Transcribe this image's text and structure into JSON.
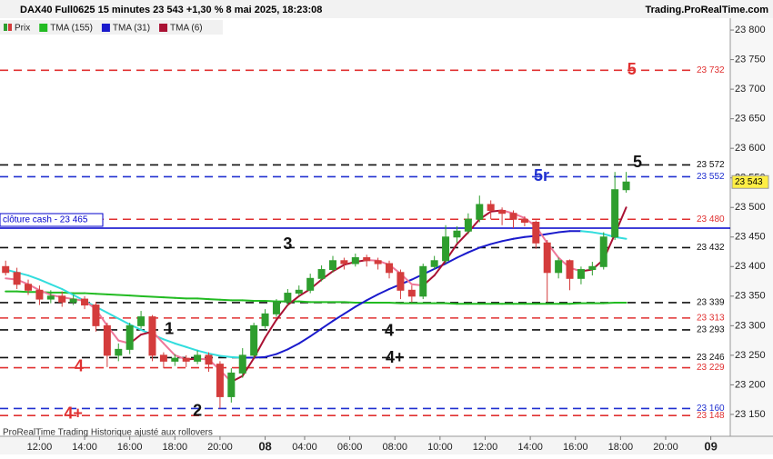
{
  "chart_data": {
    "type": "candlestick",
    "title": "DAX40 Full0625 15 minutes 23 543 +1,30 % 8 mai 2025, 18:23:08",
    "source": "Trading.ProRealTime.com",
    "footer": "ProRealTime Trading  Historique ajusté aux rollovers",
    "price_name": "Prix",
    "up_color": "#2e9e2e",
    "down_color": "#d43c3c",
    "x": [
      1,
      3,
      5,
      7,
      9,
      11,
      13,
      15,
      17,
      19,
      21,
      23,
      25,
      27,
      29,
      31,
      33,
      35,
      37,
      39,
      41,
      43,
      45,
      47,
      49,
      51,
      53,
      55,
      57,
      59,
      61,
      63,
      65,
      67,
      69,
      71,
      73,
      75,
      77,
      79,
      81,
      83,
      85,
      87,
      89,
      91,
      93,
      95,
      97,
      99,
      101,
      103,
      105,
      107,
      109,
      111
    ],
    "open": [
      23400,
      23390,
      23370,
      23360,
      23345,
      23350,
      23340,
      23345,
      23335,
      23300,
      23250,
      23260,
      23300,
      23315,
      23250,
      23240,
      23245,
      23240,
      23250,
      23235,
      23180,
      23220,
      23250,
      23300,
      23320,
      23340,
      23355,
      23360,
      23380,
      23395,
      23410,
      23405,
      23415,
      23410,
      23405,
      23390,
      23360,
      23350,
      23400,
      23410,
      23450,
      23460,
      23480,
      23505,
      23495,
      23490,
      23480,
      23475,
      23440,
      23390,
      23410,
      23380,
      23395,
      23400,
      23450,
      23530
    ],
    "high": [
      23410,
      23398,
      23378,
      23368,
      23360,
      23358,
      23352,
      23350,
      23340,
      23305,
      23270,
      23305,
      23325,
      23318,
      23255,
      23252,
      23250,
      23258,
      23255,
      23240,
      23228,
      23262,
      23305,
      23328,
      23345,
      23362,
      23368,
      23388,
      23402,
      23418,
      23415,
      23422,
      23420,
      23415,
      23410,
      23395,
      23368,
      23405,
      23418,
      23470,
      23468,
      23490,
      23520,
      23512,
      23500,
      23495,
      23485,
      23478,
      23445,
      23415,
      23412,
      23400,
      23408,
      23458,
      23560,
      23560
    ],
    "low": [
      23385,
      23362,
      23352,
      23335,
      23338,
      23332,
      23335,
      23328,
      23290,
      23230,
      23240,
      23252,
      23295,
      23240,
      23228,
      23232,
      23230,
      23235,
      23222,
      23160,
      23170,
      23212,
      23245,
      23295,
      23315,
      23335,
      23350,
      23355,
      23375,
      23390,
      23395,
      23400,
      23400,
      23395,
      23380,
      23345,
      23340,
      23345,
      23395,
      23405,
      23440,
      23455,
      23475,
      23480,
      23470,
      23465,
      23468,
      23430,
      23340,
      23380,
      23360,
      23370,
      23385,
      23395,
      23445,
      23525
    ],
    "close": [
      23390,
      23370,
      23360,
      23345,
      23350,
      23340,
      23345,
      23335,
      23300,
      23250,
      23260,
      23300,
      23315,
      23250,
      23240,
      23245,
      23240,
      23250,
      23235,
      23180,
      23220,
      23250,
      23300,
      23320,
      23340,
      23355,
      23360,
      23380,
      23395,
      23410,
      23405,
      23415,
      23410,
      23405,
      23390,
      23360,
      23350,
      23400,
      23410,
      23450,
      23460,
      23480,
      23505,
      23495,
      23490,
      23480,
      23475,
      23440,
      23390,
      23410,
      23380,
      23395,
      23400,
      23450,
      23530,
      23543
    ],
    "series": [
      {
        "name": "TMA (155)",
        "color": "#22bb22",
        "values": [
          23358,
          23358,
          23357,
          23357,
          23356,
          23356,
          23355,
          23355,
          23354,
          23353,
          23352,
          23351,
          23350,
          23349,
          23348,
          23347,
          23346,
          23346,
          23345,
          23344,
          23343,
          23343,
          23342,
          23342,
          23341,
          23341,
          23341,
          23340,
          23340,
          23340,
          23340,
          23339,
          23339,
          23339,
          23339,
          23338,
          23338,
          23338,
          23338,
          23338,
          23337,
          23337,
          23337,
          23337,
          23337,
          23337,
          23337,
          23337,
          23337,
          23337,
          23337,
          23338,
          23338,
          23338,
          23339,
          23339
        ]
      },
      {
        "name": "TMA (31)",
        "color": "#1a1acc",
        "color_down": "#33dddd",
        "values": [
          23395,
          23390,
          23385,
          23378,
          23370,
          23362,
          23352,
          23342,
          23332,
          23322,
          23312,
          23302,
          23293,
          23285,
          23277,
          23270,
          23264,
          23258,
          23253,
          23249,
          23247,
          23246,
          23246,
          23247,
          23252,
          23260,
          23270,
          23282,
          23295,
          23308,
          23320,
          23332,
          23343,
          23353,
          23362,
          23370,
          23378,
          23387,
          23396,
          23405,
          23415,
          23424,
          23432,
          23438,
          23443,
          23447,
          23450,
          23452,
          23455,
          23458,
          23460,
          23460,
          23458,
          23455,
          23450,
          23447
        ]
      },
      {
        "name": "TMA (6)",
        "color": "#aa1133",
        "color_down": "#ee7799",
        "values": [
          23380,
          23378,
          23370,
          23360,
          23352,
          23348,
          23345,
          23342,
          23328,
          23300,
          23275,
          23270,
          23285,
          23290,
          23270,
          23250,
          23243,
          23244,
          23243,
          23225,
          23205,
          23215,
          23245,
          23280,
          23310,
          23335,
          23350,
          23362,
          23378,
          23392,
          23403,
          23408,
          23411,
          23410,
          23403,
          23388,
          23370,
          23368,
          23385,
          23410,
          23438,
          23458,
          23480,
          23493,
          23495,
          23490,
          23482,
          23468,
          23440,
          23415,
          23398,
          23392,
          23395,
          23412,
          23455,
          23500
        ]
      }
    ],
    "xlim": [
      0,
      123
    ],
    "xticks": [
      {
        "value": 7,
        "label": "12:00"
      },
      {
        "value": 15,
        "label": "14:00"
      },
      {
        "value": 23,
        "label": "16:00"
      },
      {
        "value": 31,
        "label": "18:00"
      },
      {
        "value": 39,
        "label": "20:00"
      },
      {
        "value": 47,
        "label": "08"
      },
      {
        "value": 54,
        "label": "04:00"
      },
      {
        "value": 62,
        "label": "06:00"
      },
      {
        "value": 70,
        "label": "08:00"
      },
      {
        "value": 78,
        "label": "10:00"
      },
      {
        "value": 86,
        "label": "12:00"
      },
      {
        "value": 94,
        "label": "14:00"
      },
      {
        "value": 102,
        "label": "16:00"
      },
      {
        "value": 110,
        "label": "18:00"
      },
      {
        "value": 118,
        "label": "20:00"
      },
      {
        "value": 126,
        "label": "09"
      }
    ],
    "ylim": [
      23113,
      23817
    ],
    "yticks": [
      {
        "value": 23150,
        "label": "23 150"
      },
      {
        "value": 23200,
        "label": "23 200"
      },
      {
        "value": 23250,
        "label": "23 250"
      },
      {
        "value": 23300,
        "label": "23 300"
      },
      {
        "value": 23350,
        "label": "23 350"
      },
      {
        "value": 23400,
        "label": "23 400"
      },
      {
        "value": 23450,
        "label": "23 450"
      },
      {
        "value": 23500,
        "label": "23 500"
      },
      {
        "value": 23550,
        "label": "23 550"
      },
      {
        "value": 23600,
        "label": "23 600"
      },
      {
        "value": 23650,
        "label": "23 650"
      },
      {
        "value": 23700,
        "label": "23 700"
      },
      {
        "value": 23750,
        "label": "23 750"
      },
      {
        "value": 23800,
        "label": "23 800"
      }
    ],
    "levels": [
      {
        "value": 23732,
        "label": "23 732",
        "color": "#e03030"
      },
      {
        "value": 23572,
        "label": "23 572",
        "color": "#111111"
      },
      {
        "value": 23552,
        "label": "23 552",
        "color": "#2030d0"
      },
      {
        "value": 23480,
        "label": "23 480",
        "color": "#e03030"
      },
      {
        "value": 23432,
        "label": "23 432",
        "color": "#111111"
      },
      {
        "value": 23339,
        "label": "23 339",
        "color": "#111111"
      },
      {
        "value": 23313,
        "label": "23 313",
        "color": "#e03030"
      },
      {
        "value": 23293,
        "label": "23 293",
        "color": "#111111"
      },
      {
        "value": 23246,
        "label": "23 246",
        "color": "#111111"
      },
      {
        "value": 23229,
        "label": "23 229",
        "color": "#e03030"
      },
      {
        "value": 23160,
        "label": "23 160",
        "color": "#2030d0"
      },
      {
        "value": 23148,
        "label": "23 148",
        "color": "#e03030"
      }
    ],
    "reference_line": {
      "value": 23465,
      "label": "clôture cash -  23 465",
      "color": "#0000cc"
    },
    "last_price": {
      "value": 23543,
      "label": "23 543"
    },
    "annotations": [
      {
        "text": "5",
        "x": 112,
        "y": 23732,
        "color": "#e03030"
      },
      {
        "text": "5",
        "x": 113,
        "y": 23575,
        "color": "#111111"
      },
      {
        "text": "5r",
        "x": 96,
        "y": 23552,
        "color": "#2030d0"
      },
      {
        "text": "3",
        "x": 51,
        "y": 23437,
        "color": "#111111"
      },
      {
        "text": "4",
        "x": 69,
        "y": 23290,
        "color": "#111111"
      },
      {
        "text": "4+",
        "x": 70,
        "y": 23245,
        "color": "#111111"
      },
      {
        "text": "1",
        "x": 30,
        "y": 23293,
        "color": "#111111"
      },
      {
        "text": "2",
        "x": 35,
        "y": 23155,
        "color": "#111111"
      },
      {
        "text": "4",
        "x": 14,
        "y": 23230,
        "color": "#e03030"
      },
      {
        "text": "4+",
        "x": 13,
        "y": 23150,
        "color": "#e03030"
      }
    ]
  }
}
